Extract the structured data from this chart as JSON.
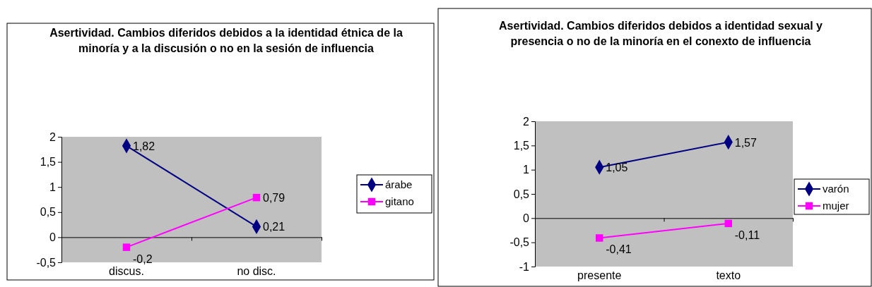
{
  "chart_data": [
    {
      "type": "line",
      "title": "Asertividad. Cambios diferidos debidos a la identidad étnica de la minoría y a la discusión o no en la sesión de influencia",
      "categories": [
        "discus.",
        "no disc."
      ],
      "series": [
        {
          "name": "árabe",
          "color": "#000080",
          "values": [
            1.82,
            0.21
          ],
          "value_labels": [
            "1,82",
            "0,21"
          ],
          "marker": "diamond"
        },
        {
          "name": "gitano",
          "color": "#ff00ff",
          "values": [
            -0.2,
            0.79
          ],
          "value_labels": [
            "-0,2",
            "0,79"
          ],
          "marker": "square"
        }
      ],
      "ylim": [
        -0.5,
        2
      ],
      "yticks": [
        {
          "value": -0.5,
          "label": "-0,5"
        },
        0,
        {
          "value": 0.5,
          "label": "0,5"
        },
        1,
        {
          "value": 1.5,
          "label": "1,5"
        },
        2
      ],
      "legend": "right"
    },
    {
      "type": "line",
      "title": "Asertividad. Cambios diferidos debidos a identidad sexual y presencia o no de la minoría en el conexto de influencia",
      "categories": [
        "presente",
        "texto"
      ],
      "series": [
        {
          "name": "varón",
          "color": "#000080",
          "values": [
            1.05,
            1.57
          ],
          "value_labels": [
            "1,05",
            "1,57"
          ],
          "marker": "diamond"
        },
        {
          "name": "mujer",
          "color": "#ff00ff",
          "values": [
            -0.41,
            -0.11
          ],
          "value_labels": [
            "-0,41",
            "-0,11"
          ],
          "marker": "square"
        }
      ],
      "ylim": [
        -1,
        2
      ],
      "yticks": [
        -1,
        {
          "value": -0.5,
          "label": "-0,5"
        },
        0,
        {
          "value": 0.5,
          "label": "0,5"
        },
        1,
        {
          "value": 1.5,
          "label": "1,5"
        },
        2
      ],
      "legend": "right"
    }
  ]
}
